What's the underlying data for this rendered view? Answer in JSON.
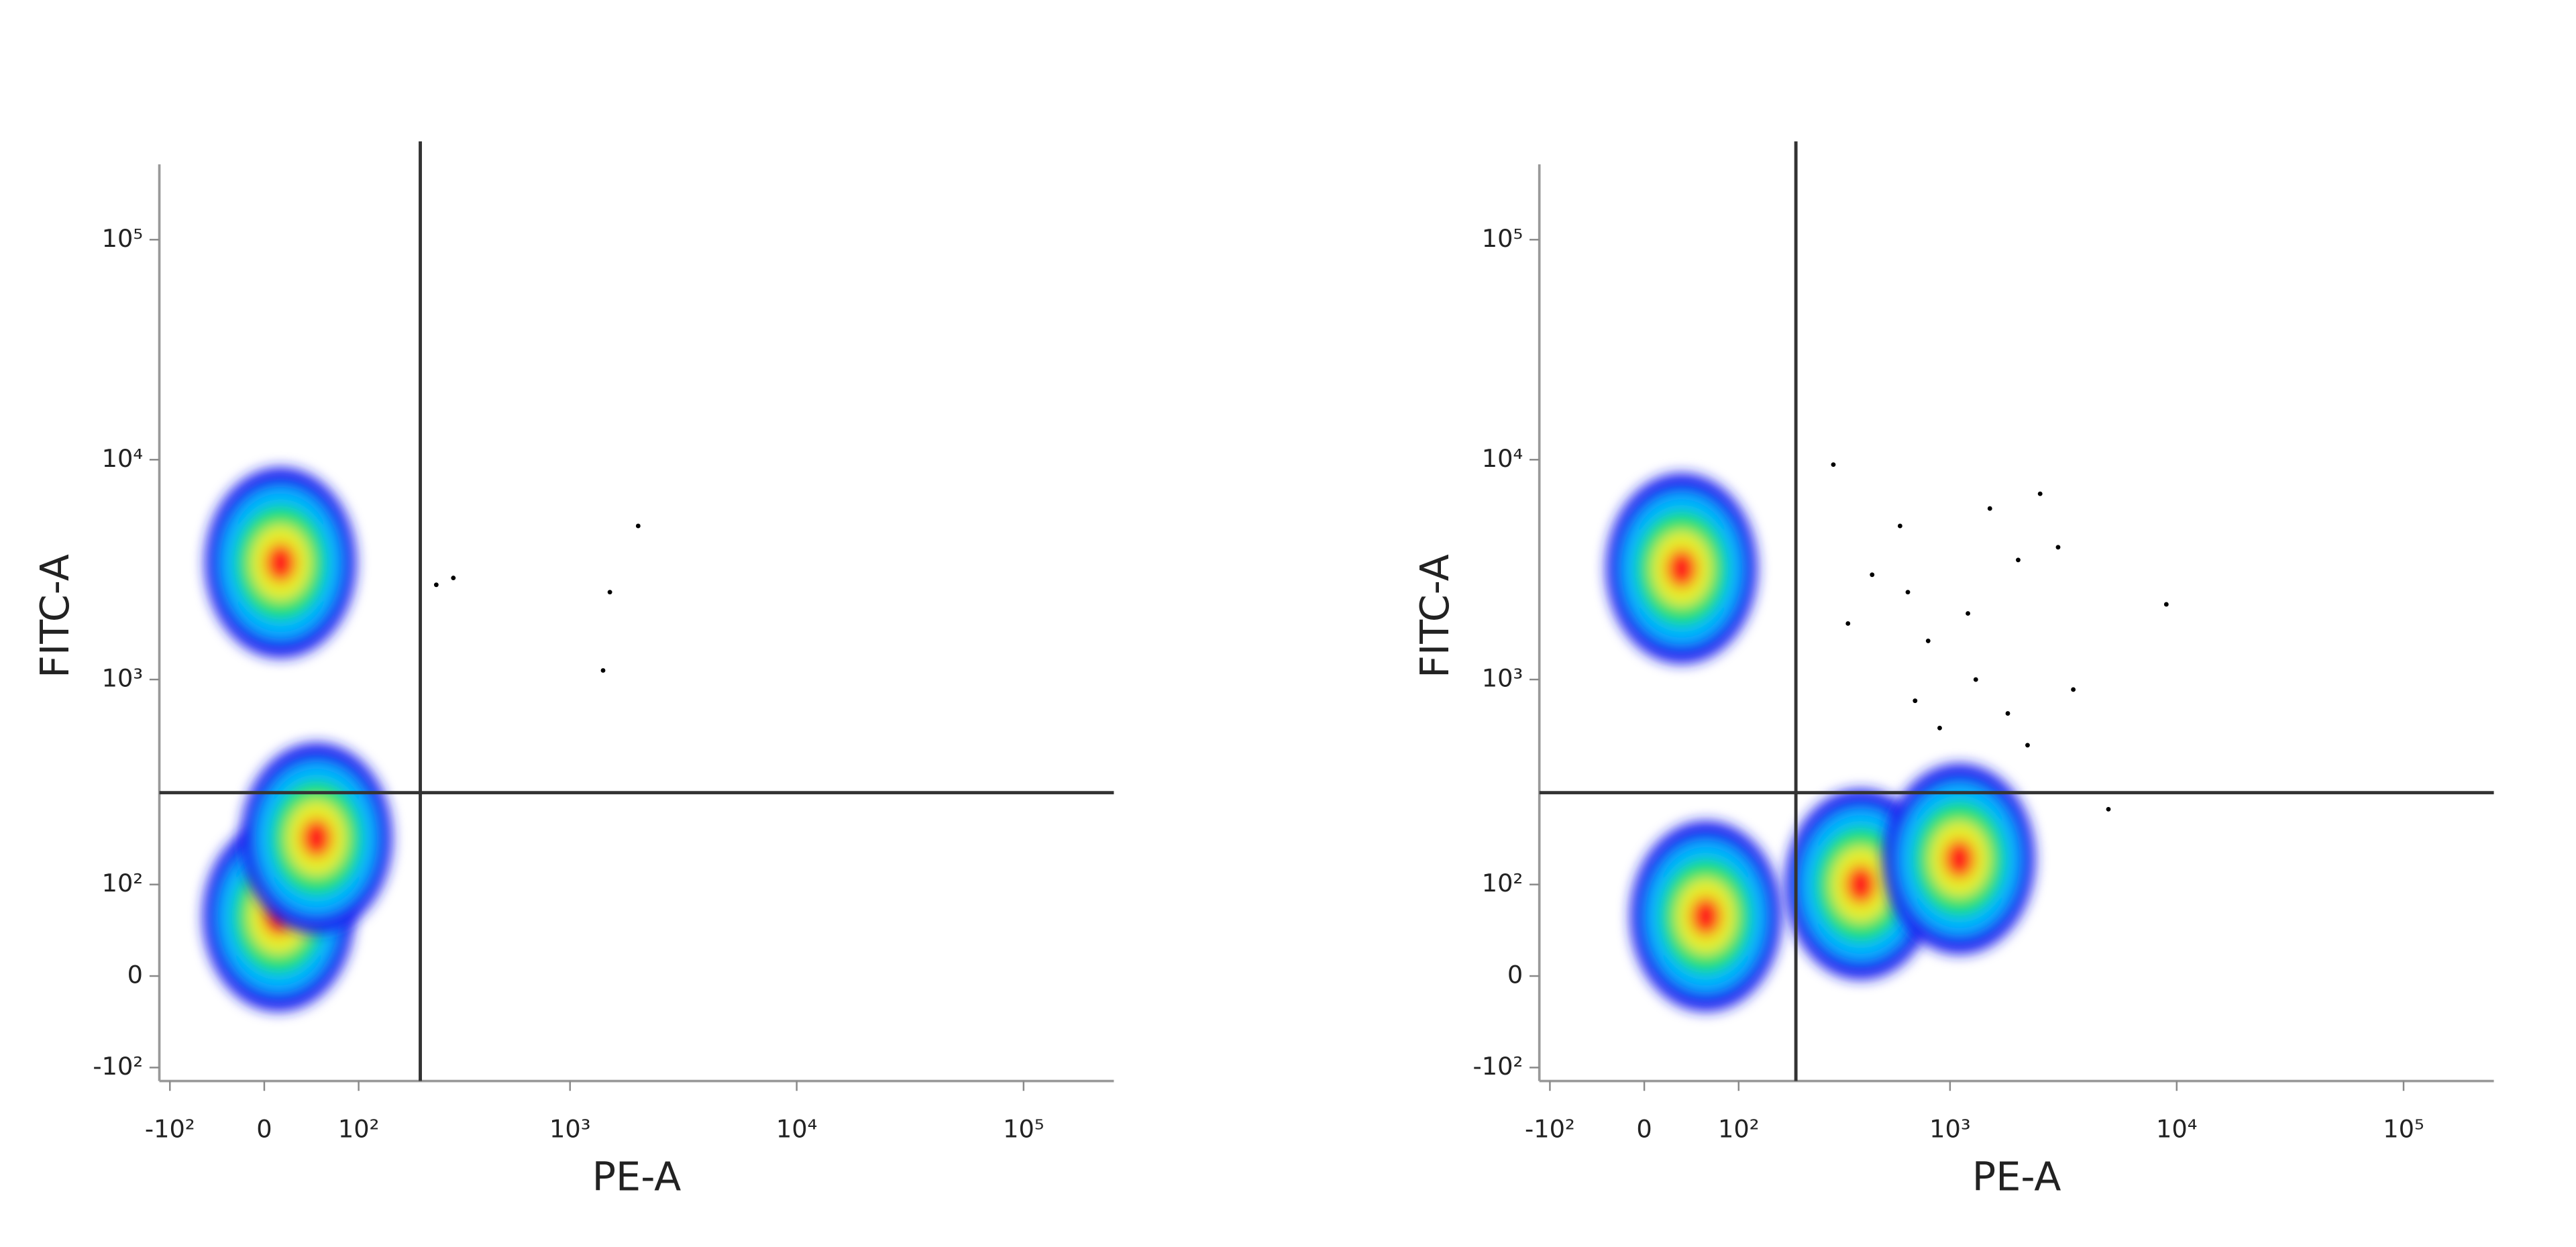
{
  "chart_data": [
    {
      "type": "scatter",
      "scale": "biexponential",
      "x_label": "PE-A",
      "y_label": "FITC-A",
      "xlim": [
        -115,
        250000
      ],
      "ylim": [
        -120,
        220000
      ],
      "xticks": [
        {
          "value": -100,
          "label": "-10²"
        },
        0,
        {
          "value": 100,
          "label": "10²"
        },
        {
          "value": 1000,
          "label": "10³"
        },
        {
          "value": 10000,
          "label": "10⁴"
        },
        {
          "value": 100000,
          "label": "10⁵"
        }
      ],
      "yticks": [
        {
          "value": -100,
          "label": "-10²"
        },
        0,
        {
          "value": 100,
          "label": "10²"
        },
        {
          "value": 1000,
          "label": "10³"
        },
        {
          "value": 10000,
          "label": "10⁴"
        },
        {
          "value": 100000,
          "label": "10⁵"
        }
      ],
      "gate_x": 210,
      "gate_y": 300,
      "series": [
        {
          "style": "density",
          "colors": [
            "#1b22f0",
            "#00b4ff",
            "#1fe070",
            "#e6ee2a",
            "#ff1e1e"
          ],
          "x": [
            15,
            13,
            50
          ],
          "y": [
            3400,
            60,
            180
          ]
        },
        {
          "style": "dot",
          "color": "#000000",
          "x": [
            300,
            1500,
            2000,
            1400,
            250
          ],
          "y": [
            2900,
            2500,
            5000,
            1100,
            2700
          ]
        }
      ]
    },
    {
      "type": "scatter",
      "scale": "biexponential",
      "x_label": "PE-A",
      "y_label": "FITC-A",
      "xlim": [
        -115,
        250000
      ],
      "ylim": [
        -120,
        220000
      ],
      "xticks": [
        {
          "value": -100,
          "label": "-10²"
        },
        0,
        {
          "value": 100,
          "label": "10²"
        },
        {
          "value": 1000,
          "label": "10³"
        },
        {
          "value": 10000,
          "label": "10⁴"
        },
        {
          "value": 100000,
          "label": "10⁵"
        }
      ],
      "yticks": [
        {
          "value": -100,
          "label": "-10²"
        },
        0,
        {
          "value": 100,
          "label": "10²"
        },
        {
          "value": 1000,
          "label": "10³"
        },
        {
          "value": 10000,
          "label": "10⁴"
        },
        {
          "value": 100000,
          "label": "10⁵"
        }
      ],
      "gate_x": 200,
      "gate_y": 300,
      "series": [
        {
          "style": "density",
          "colors": [
            "#1b22f0",
            "#00b4ff",
            "#1fe070",
            "#e6ee2a",
            "#ff1e1e"
          ],
          "x": [
            35,
            60,
            400,
            1100
          ],
          "y": [
            3200,
            60,
            100,
            140
          ]
        },
        {
          "style": "dot",
          "color": "#000000",
          "x": [
            300,
            450,
            600,
            800,
            1200,
            1500,
            2000,
            2500,
            3000,
            700,
            900,
            1300,
            1800,
            3500,
            5000,
            2200,
            650,
            350,
            9000
          ],
          "y": [
            9500,
            3000,
            5000,
            1500,
            2000,
            6000,
            3500,
            7000,
            4000,
            800,
            600,
            1000,
            700,
            900,
            250,
            500,
            2500,
            1800,
            2200
          ]
        }
      ]
    }
  ]
}
